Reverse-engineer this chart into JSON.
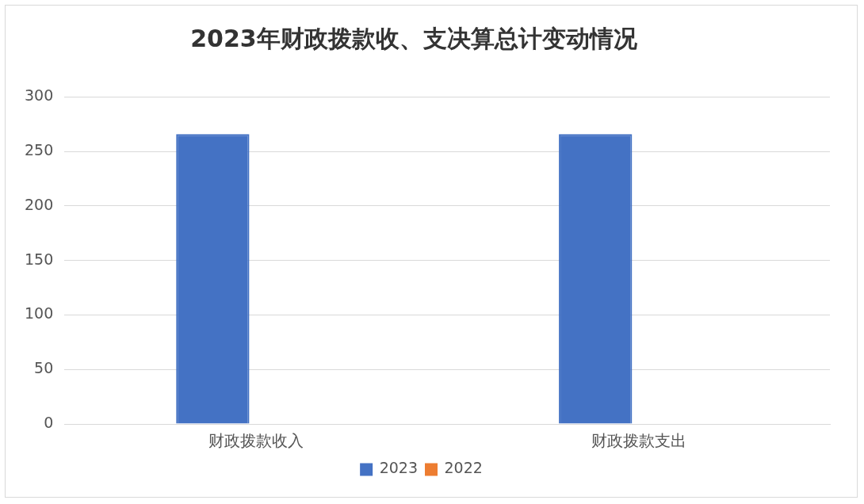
{
  "chart_data": {
    "type": "bar",
    "title": "2023年财政拨款收、支决算总计变动情况",
    "categories": [
      "财政拨款收入",
      "财政拨款支出"
    ],
    "series": [
      {
        "name": "2023",
        "color": "#4472c4",
        "values": [
          266,
          266
        ]
      },
      {
        "name": "2022",
        "color": "#ed7d31",
        "values": [
          null,
          null
        ]
      }
    ],
    "ylim": [
      0,
      300
    ],
    "yticks": [
      0,
      50,
      100,
      150,
      200,
      250,
      300
    ],
    "grid": "y",
    "legend": "bottom"
  }
}
